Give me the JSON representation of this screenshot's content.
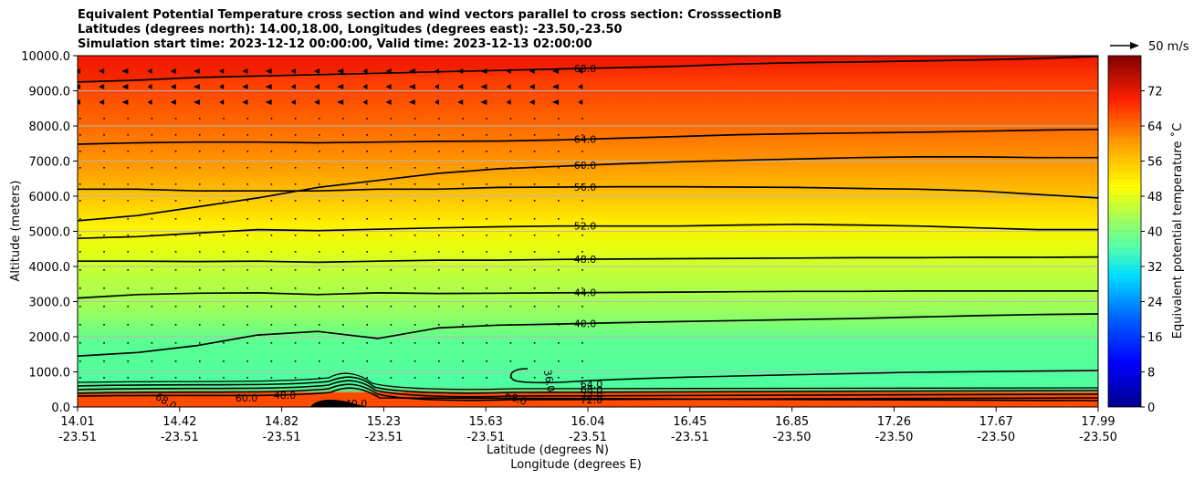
{
  "chart_data": {
    "type": "heatmap",
    "title_lines": [
      "Equivalent Potential Temperature cross section and wind vectors parallel to cross section: CrosssectionB",
      "Latitudes (degrees north): 14.00,18.00, Longitudes (degrees east): -23.50,-23.50",
      "Simulation start time: 2023-12-12 00:00:00, Valid time: 2023-12-13 02:00:00"
    ],
    "ylabel": "Altitude (meters)",
    "xlabel_lat": "Latitude (degrees N)",
    "xlabel_lon": "Longitude (degrees E)",
    "ylim": [
      0,
      10000
    ],
    "y_ticks": [
      "0.0",
      "1000.0",
      "2000.0",
      "3000.0",
      "4000.0",
      "5000.0",
      "6000.0",
      "7000.0",
      "8000.0",
      "9000.0",
      "10000.0"
    ],
    "x_lat_ticks": [
      "14.01",
      "14.42",
      "14.82",
      "15.23",
      "15.63",
      "16.04",
      "16.45",
      "16.85",
      "17.26",
      "17.67",
      "17.99"
    ],
    "x_lon_ticks": [
      "-23.51",
      "-23.51",
      "-23.51",
      "-23.51",
      "-23.51",
      "-23.51",
      "-23.51",
      "-23.50",
      "-23.50",
      "-23.50",
      "-23.50"
    ],
    "colorbar_label": "Equivalent potential temperature $^\\circ$C",
    "colorbar_label_text": "Equivalent potential temperature ˚C",
    "colorbar_range": [
      0,
      80
    ],
    "colorbar_ticks": [
      "0",
      "8",
      "16",
      "24",
      "32",
      "40",
      "48",
      "56",
      "64",
      "72"
    ],
    "quiver_key_label": "50 m/s",
    "contours": [
      {
        "value": 40,
        "label": "40.0",
        "alt": [
          1450,
          1550,
          1750,
          2050,
          2150,
          1950,
          2250,
          2330,
          2360,
          2400,
          2430,
          2460,
          2490,
          2520,
          2560,
          2600,
          2630,
          2650
        ]
      },
      {
        "value": 44,
        "label": "44.0",
        "alt": [
          3100,
          3200,
          3240,
          3250,
          3200,
          3250,
          3230,
          3240,
          3250,
          3260,
          3270,
          3280,
          3290,
          3290,
          3300,
          3300,
          3300,
          3300
        ]
      },
      {
        "value": 48,
        "label": "48.0",
        "alt": [
          4150,
          4150,
          4140,
          4150,
          4120,
          4150,
          4180,
          4180,
          4200,
          4210,
          4220,
          4230,
          4240,
          4250,
          4250,
          4260,
          4260,
          4270
        ]
      },
      {
        "value": 52,
        "label": "52.0",
        "alt": [
          4800,
          4850,
          4950,
          5050,
          5020,
          5060,
          5100,
          5130,
          5150,
          5150,
          5150,
          5180,
          5200,
          5180,
          5150,
          5100,
          5050,
          5050
        ]
      },
      {
        "value": 56,
        "label": "56.0",
        "alt": [
          6200,
          6200,
          6150,
          6150,
          6150,
          6200,
          6200,
          6250,
          6260,
          6270,
          6270,
          6260,
          6250,
          6220,
          6200,
          6150,
          6050,
          5950
        ]
      },
      {
        "value": 60,
        "label": "60.0",
        "alt": [
          5300,
          5450,
          5700,
          5950,
          6250,
          6450,
          6650,
          6780,
          6850,
          6920,
          6980,
          7020,
          7060,
          7100,
          7120,
          7120,
          7100,
          7100
        ]
      },
      {
        "value": 64,
        "label": "64.0",
        "alt": [
          7480,
          7520,
          7540,
          7540,
          7520,
          7540,
          7560,
          7570,
          7600,
          7650,
          7700,
          7750,
          7780,
          7800,
          7820,
          7850,
          7880,
          7900
        ]
      },
      {
        "value": 68,
        "label": "68.0",
        "alt": [
          9250,
          9300,
          9380,
          9420,
          9460,
          9500,
          9540,
          9580,
          9620,
          9660,
          9700,
          9760,
          9800,
          9820,
          9850,
          9880,
          9920,
          9980
        ]
      }
    ],
    "surface_labels": [
      "68.0",
      "60.0",
      "48.0",
      "40.0",
      "36.0",
      "64.0",
      "68.0",
      "72.0",
      "72.0",
      "68.0"
    ]
  }
}
